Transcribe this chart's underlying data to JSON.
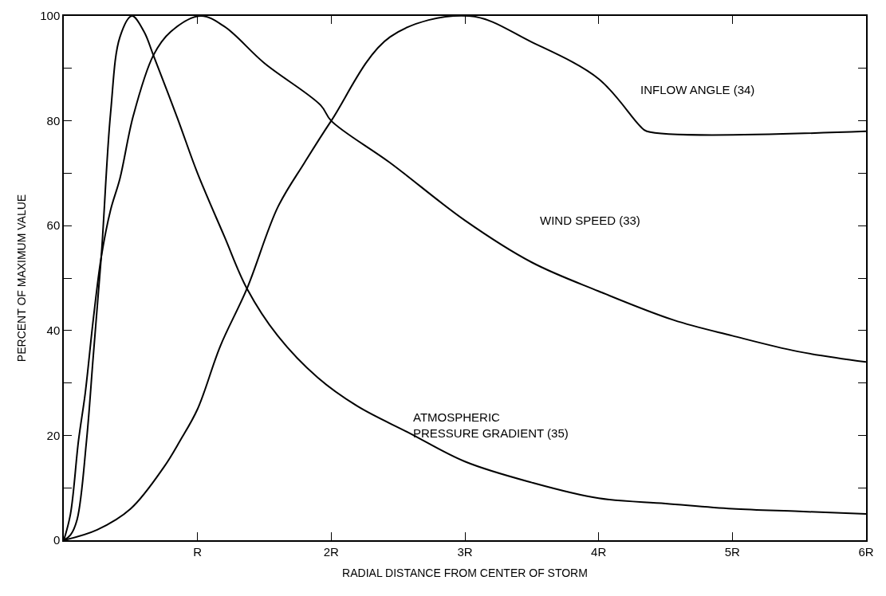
{
  "chart_data": {
    "type": "line",
    "xlabel": "RADIAL DISTANCE FROM CENTER OF STORM",
    "ylabel": "PERCENT OF MAXIMUM VALUE",
    "xlim": [
      0,
      6
    ],
    "ylim": [
      0,
      100
    ],
    "xticks": [
      {
        "value": 1,
        "label": "R"
      },
      {
        "value": 2,
        "label": "2R"
      },
      {
        "value": 3,
        "label": "3R"
      },
      {
        "value": 4,
        "label": "4R"
      },
      {
        "value": 5,
        "label": "5R"
      },
      {
        "value": 6,
        "label": "6R"
      }
    ],
    "yticks": [
      0,
      {
        "value": 10,
        "label": null
      },
      20,
      {
        "value": 30,
        "label": null
      },
      40,
      {
        "value": 50,
        "label": null
      },
      60,
      {
        "value": 70,
        "label": null
      },
      80,
      {
        "value": 90,
        "label": null
      },
      100
    ],
    "grid": false,
    "legend": false,
    "marker": "none",
    "line_style": "solid",
    "series": [
      {
        "name": "WIND SPEED (33)",
        "color": "#000000",
        "x": [
          0,
          0.05,
          0.11,
          0.16,
          0.22,
          0.28,
          0.35,
          0.42,
          0.52,
          0.67,
          0.8,
          1.02,
          1.2,
          1.5,
          1.92,
          2.0,
          2.44,
          3.0,
          3.5,
          4.0,
          4.56,
          5.0,
          5.49,
          6.0
        ],
        "values": [
          0,
          5,
          19,
          28,
          42,
          54,
          63,
          69,
          81,
          92.5,
          97,
          100,
          98,
          91,
          83,
          80,
          72,
          61,
          53,
          47.5,
          42,
          39,
          36,
          34
        ]
      },
      {
        "name": "INFLOW ANGLE (34)",
        "color": "#000000",
        "x": [
          0,
          0.25,
          0.5,
          0.75,
          0.87,
          1.0,
          1.17,
          1.37,
          1.6,
          1.8,
          2.0,
          2.44,
          3.03,
          3.5,
          4.0,
          4.31,
          4.36,
          6.0
        ],
        "values": [
          0,
          2,
          6,
          14,
          19,
          25,
          37,
          48,
          63.5,
          72,
          80,
          96,
          100,
          95,
          88,
          79,
          78,
          78
        ]
      },
      {
        "name": "ATMOSPHERIC\nPRESSURE GRADIENT (35)",
        "color": "#000000",
        "x": [
          0,
          0.05,
          0.1,
          0.17,
          0.22,
          0.28,
          0.35,
          0.42,
          0.51,
          0.6,
          0.67,
          0.85,
          1.0,
          1.2,
          1.37,
          1.6,
          1.9,
          2.2,
          2.58,
          3.0,
          3.5,
          4.0,
          4.5,
          5.0,
          5.5,
          6.0
        ],
        "values": [
          0,
          1,
          4,
          19,
          35,
          54,
          81.5,
          96,
          100,
          97,
          92.5,
          80.5,
          70,
          58,
          48,
          39,
          31,
          25.5,
          20.5,
          15,
          11,
          8,
          7,
          6,
          5.5,
          5
        ]
      }
    ]
  }
}
